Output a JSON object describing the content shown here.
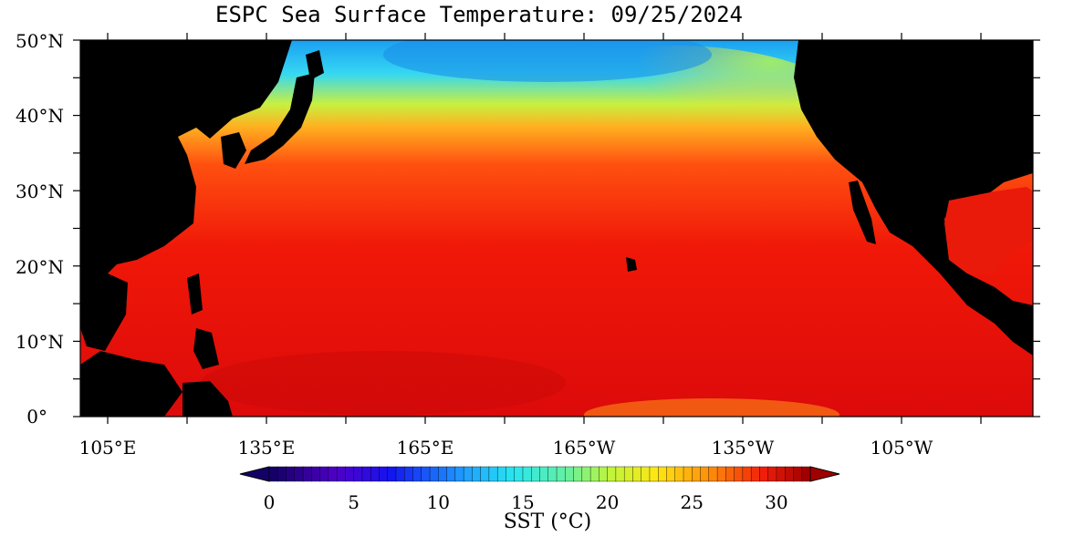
{
  "title": "ESPC Sea Surface Temperature: 09/25/2024",
  "lat_labels": [
    "50°N",
    "40°N",
    "30°N",
    "20°N",
    "10°N",
    "0°"
  ],
  "lon_labels": [
    "105°E",
    "135°E",
    "165°E",
    "165°W",
    "135°W",
    "105°W"
  ],
  "colorbar": {
    "label": "SST (°C)",
    "ticks": [
      "0",
      "5",
      "10",
      "15",
      "20",
      "25",
      "30"
    ],
    "range": [
      0,
      32
    ]
  },
  "colors": {
    "land": "#000000",
    "warm": "#e81010",
    "cold": "#24c8f0"
  }
}
